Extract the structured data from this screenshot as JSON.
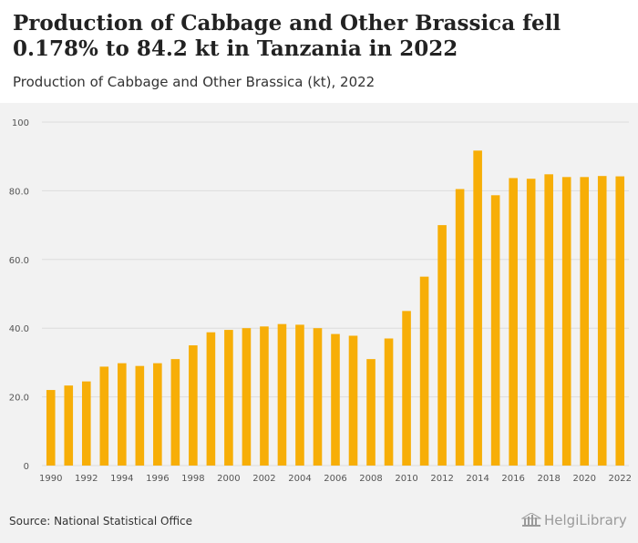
{
  "header": {
    "title": "Production of Cabbage and Other Brassica fell 0.178% to 84.2 kt in Tanzania in 2022",
    "subtitle": "Production of Cabbage and Other Brassica (kt), 2022"
  },
  "footer": {
    "source": "Source: National Statistical Office",
    "logo": "HelgiLibrary"
  },
  "colors": {
    "bar": "#f7ae07",
    "grid": "#dcdcdc",
    "tick_text": "#555555"
  },
  "chart_data": {
    "type": "bar",
    "title": "Production of Cabbage and Other Brassica (kt), 2022",
    "xlabel": "",
    "ylabel": "",
    "categories": [
      1990,
      1991,
      1992,
      1993,
      1994,
      1995,
      1996,
      1997,
      1998,
      1999,
      2000,
      2001,
      2002,
      2003,
      2004,
      2005,
      2006,
      2007,
      2008,
      2009,
      2010,
      2011,
      2012,
      2013,
      2014,
      2015,
      2016,
      2017,
      2018,
      2019,
      2020,
      2021,
      2022
    ],
    "values": [
      22.0,
      23.3,
      24.5,
      28.8,
      29.8,
      29.0,
      29.8,
      31.0,
      35.0,
      38.8,
      39.5,
      40.0,
      40.5,
      41.2,
      41.0,
      40.0,
      38.3,
      37.8,
      31.0,
      37.0,
      45.0,
      55.0,
      70.0,
      80.5,
      91.7,
      78.7,
      83.7,
      83.5,
      84.8,
      84.0,
      84.0,
      84.3,
      84.2
    ],
    "x_tick_labels": [
      "1990",
      "1992",
      "1994",
      "1996",
      "1998",
      "2000",
      "2002",
      "2004",
      "2006",
      "2008",
      "2010",
      "2012",
      "2014",
      "2016",
      "2018",
      "2020",
      "2022"
    ],
    "y_tick_labels": [
      "0",
      "20.0",
      "40.0",
      "60.0",
      "80.0",
      "100"
    ],
    "y_ticks": [
      0,
      20,
      40,
      60,
      80,
      100
    ],
    "ylim": [
      0,
      100
    ],
    "grid": true,
    "legend": "none"
  }
}
